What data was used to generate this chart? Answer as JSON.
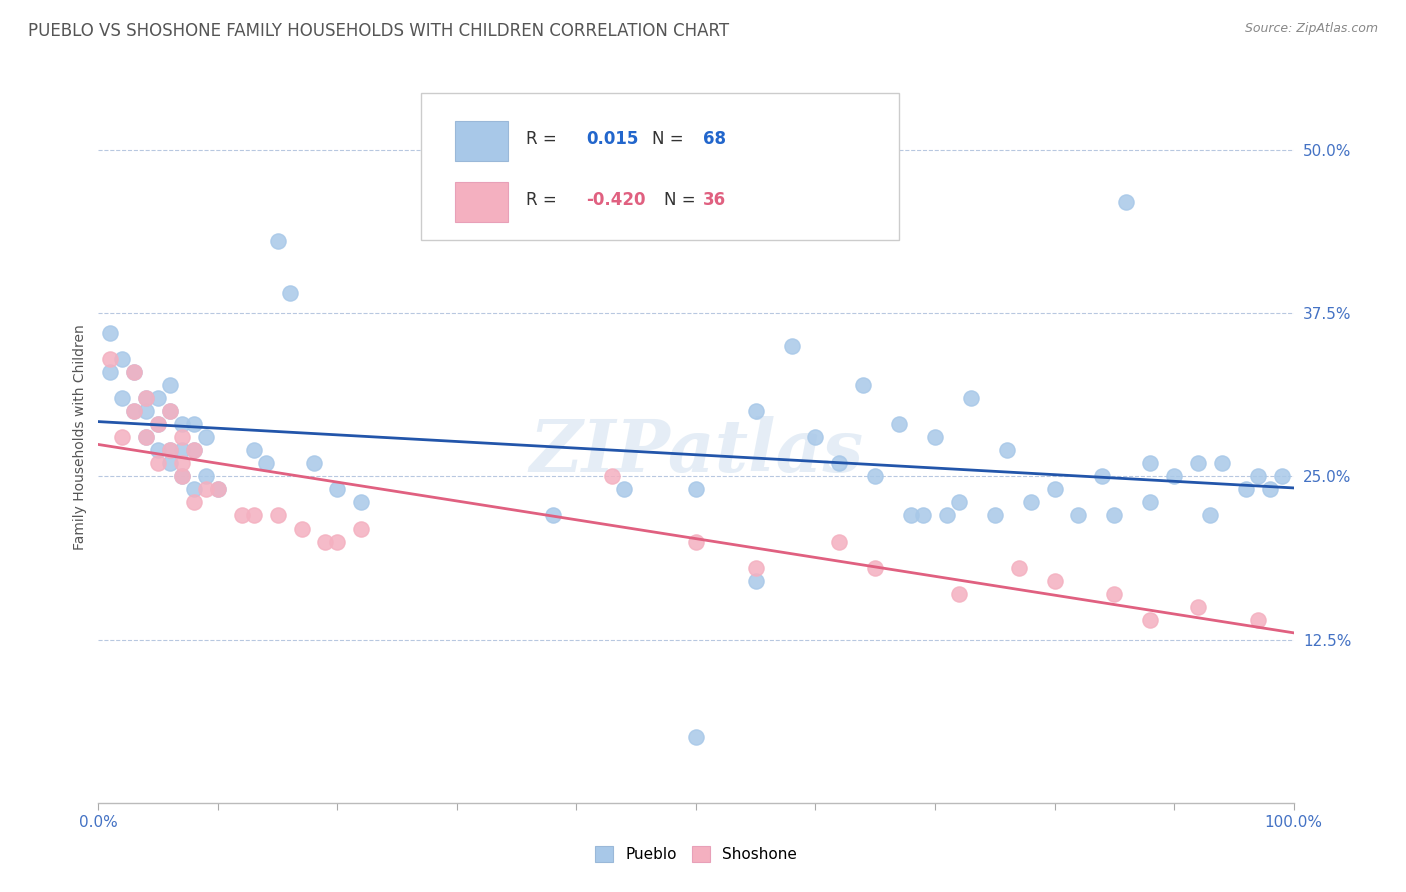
{
  "title": "PUEBLO VS SHOSHONE FAMILY HOUSEHOLDS WITH CHILDREN CORRELATION CHART",
  "source": "Source: ZipAtlas.com",
  "ylabel": "Family Households with Children",
  "xlim": [
    0,
    1.0
  ],
  "ylim": [
    0,
    0.56
  ],
  "yticks": [
    0.125,
    0.25,
    0.375,
    0.5
  ],
  "ytick_labels": [
    "12.5%",
    "25.0%",
    "37.5%",
    "50.0%"
  ],
  "xtick_positions": [
    0.0,
    0.1,
    0.2,
    0.3,
    0.4,
    0.5,
    0.6,
    0.7,
    0.8,
    0.9,
    1.0
  ],
  "xtick_labels_shown": [
    "0.0%",
    "",
    "",
    "",
    "",
    "",
    "",
    "",
    "",
    "",
    "100.0%"
  ],
  "pueblo_color": "#a8c8e8",
  "shoshone_color": "#f4b0c0",
  "pueblo_line_color": "#2255aa",
  "shoshone_line_color": "#e06080",
  "legend_r_pueblo": "0.015",
  "legend_n_pueblo": "68",
  "legend_r_shoshone": "-0.420",
  "legend_n_shoshone": "36",
  "watermark": "ZIPatlas",
  "pueblo_x": [
    0.01,
    0.01,
    0.02,
    0.02,
    0.03,
    0.03,
    0.04,
    0.04,
    0.04,
    0.05,
    0.05,
    0.05,
    0.06,
    0.06,
    0.06,
    0.06,
    0.07,
    0.07,
    0.07,
    0.08,
    0.08,
    0.08,
    0.09,
    0.09,
    0.1,
    0.13,
    0.14,
    0.15,
    0.16,
    0.18,
    0.2,
    0.22,
    0.38,
    0.44,
    0.5,
    0.55,
    0.58,
    0.6,
    0.62,
    0.64,
    0.65,
    0.67,
    0.7,
    0.72,
    0.73,
    0.75,
    0.76,
    0.78,
    0.8,
    0.82,
    0.84,
    0.85,
    0.86,
    0.88,
    0.88,
    0.9,
    0.92,
    0.93,
    0.94,
    0.96,
    0.97,
    0.98,
    0.99,
    0.68,
    0.69,
    0.71,
    0.5,
    0.55
  ],
  "pueblo_y": [
    0.33,
    0.36,
    0.31,
    0.34,
    0.33,
    0.3,
    0.31,
    0.28,
    0.3,
    0.29,
    0.27,
    0.31,
    0.27,
    0.3,
    0.26,
    0.32,
    0.27,
    0.29,
    0.25,
    0.27,
    0.24,
    0.29,
    0.25,
    0.28,
    0.24,
    0.27,
    0.26,
    0.43,
    0.39,
    0.26,
    0.24,
    0.23,
    0.22,
    0.24,
    0.24,
    0.3,
    0.35,
    0.28,
    0.26,
    0.32,
    0.25,
    0.29,
    0.28,
    0.23,
    0.31,
    0.22,
    0.27,
    0.23,
    0.24,
    0.22,
    0.25,
    0.22,
    0.46,
    0.26,
    0.23,
    0.25,
    0.26,
    0.22,
    0.26,
    0.24,
    0.25,
    0.24,
    0.25,
    0.22,
    0.22,
    0.22,
    0.05,
    0.17
  ],
  "shoshone_x": [
    0.01,
    0.02,
    0.03,
    0.03,
    0.04,
    0.04,
    0.05,
    0.05,
    0.06,
    0.06,
    0.07,
    0.07,
    0.07,
    0.08,
    0.08,
    0.09,
    0.1,
    0.12,
    0.13,
    0.15,
    0.17,
    0.19,
    0.2,
    0.22,
    0.43,
    0.5,
    0.55,
    0.62,
    0.65,
    0.72,
    0.77,
    0.8,
    0.85,
    0.88,
    0.92,
    0.97
  ],
  "shoshone_y": [
    0.34,
    0.28,
    0.3,
    0.33,
    0.31,
    0.28,
    0.29,
    0.26,
    0.27,
    0.3,
    0.28,
    0.25,
    0.26,
    0.27,
    0.23,
    0.24,
    0.24,
    0.22,
    0.22,
    0.22,
    0.21,
    0.2,
    0.2,
    0.21,
    0.25,
    0.2,
    0.18,
    0.2,
    0.18,
    0.16,
    0.18,
    0.17,
    0.16,
    0.14,
    0.15,
    0.14
  ],
  "title_fontsize": 12,
  "axis_label_fontsize": 10,
  "tick_fontsize": 11,
  "legend_fontsize": 12
}
